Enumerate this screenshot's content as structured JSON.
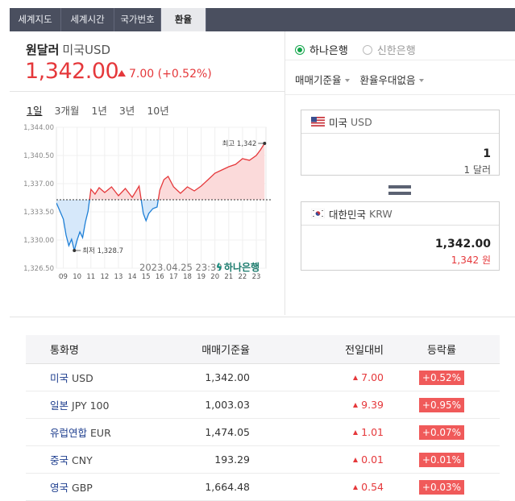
{
  "tabs": [
    {
      "label": "세계지도"
    },
    {
      "label": "세계시간"
    },
    {
      "label": "국가번호"
    },
    {
      "label": "환율"
    }
  ],
  "header": {
    "name": "원달러",
    "code": "미국USD",
    "price": "1,342.00",
    "change": "7.00 (+0.52%)"
  },
  "periods": [
    "1일",
    "3개월",
    "1년",
    "3년",
    "10년"
  ],
  "chart_data": {
    "type": "line",
    "x_ticks": [
      "09",
      "10",
      "11",
      "12",
      "13",
      "14",
      "15",
      "16",
      "17",
      "18",
      "19",
      "20",
      "21",
      "22",
      "23"
    ],
    "y_ticks": [
      "1,344.00",
      "1,340.50",
      "1,337.00",
      "1,333.50",
      "1,330.00",
      "1,326.50"
    ],
    "ylim": [
      1326.5,
      1344.0
    ],
    "baseline": 1335.0,
    "high_label": "최고 1,342",
    "low_label": "최저 1,328.7",
    "x": [
      8.5,
      9.0,
      9.2,
      9.4,
      9.6,
      9.8,
      10.0,
      10.2,
      10.4,
      10.6,
      10.8,
      11.0,
      11.3,
      11.6,
      12.0,
      12.5,
      13.0,
      13.5,
      14.0,
      14.5,
      14.8,
      15.0,
      15.2,
      15.5,
      15.8,
      16.0,
      16.3,
      16.6,
      17.0,
      17.5,
      18.0,
      18.5,
      19.0,
      19.5,
      20.0,
      20.5,
      21.0,
      21.5,
      22.0,
      22.5,
      23.0,
      23.3,
      23.6
    ],
    "y": [
      1334.6,
      1332.6,
      1330.6,
      1329.3,
      1330.1,
      1328.7,
      1330.0,
      1331.0,
      1330.3,
      1332.2,
      1333.6,
      1336.3,
      1335.7,
      1336.5,
      1335.9,
      1336.6,
      1335.5,
      1336.4,
      1335.3,
      1336.7,
      1333.3,
      1332.4,
      1333.3,
      1333.9,
      1334.1,
      1336.2,
      1337.5,
      1337.9,
      1336.6,
      1335.8,
      1336.6,
      1336.1,
      1336.7,
      1337.5,
      1338.3,
      1338.7,
      1339.1,
      1339.4,
      1340.1,
      1339.9,
      1340.5,
      1341.2,
      1342.0
    ],
    "series_colors": {
      "up": "#e5383b",
      "down": "#1e7fd6"
    }
  },
  "chart_footer": {
    "timestamp": "2023.04.25  23:39",
    "bank": "하나은행"
  },
  "banks": [
    {
      "label": "하나은행",
      "selected": true
    },
    {
      "label": "신한은행",
      "selected": false
    }
  ],
  "dropdowns": {
    "rate_type": "매매기준율",
    "preference": "환율우대없음"
  },
  "converter": {
    "from": {
      "country": "미국",
      "code": "USD",
      "value": "1",
      "sub": "1 달러"
    },
    "to": {
      "country": "대한민국",
      "code": "KRW",
      "value": "1,342.00",
      "sub": "1,342 원"
    }
  },
  "table": {
    "headers": [
      "통화명",
      "매매기준율",
      "전일대비",
      "등락률"
    ],
    "rows": [
      {
        "name": "미국",
        "code": "USD",
        "rate": "1,342.00",
        "change": "7.00",
        "pct": "+0.52%"
      },
      {
        "name": "일본",
        "code": "JPY 100",
        "rate": "1,003.03",
        "change": "9.39",
        "pct": "+0.95%"
      },
      {
        "name": "유럽연합",
        "code": "EUR",
        "rate": "1,474.05",
        "change": "1.01",
        "pct": "+0.07%"
      },
      {
        "name": "중국",
        "code": "CNY",
        "rate": "193.29",
        "change": "0.01",
        "pct": "+0.01%"
      },
      {
        "name": "영국",
        "code": "GBP",
        "rate": "1,664.48",
        "change": "0.54",
        "pct": "+0.03%"
      }
    ]
  }
}
